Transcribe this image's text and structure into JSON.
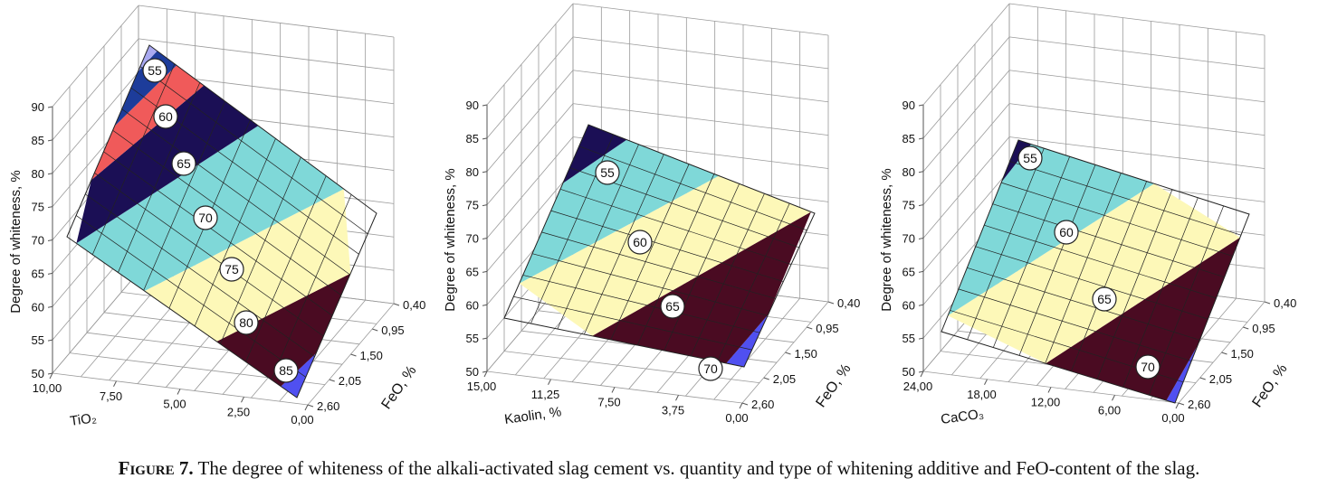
{
  "chart_data": [
    {
      "type": "surface3d",
      "zlabel": "Degree of whiteness, %",
      "xlabel": "TiO₂",
      "ylabel": "FeO, %",
      "z_ticks": [
        "50",
        "55",
        "60",
        "65",
        "70",
        "75",
        "80",
        "85",
        "90"
      ],
      "x_ticks": [
        "10,00",
        "7,50",
        "5,00",
        "2,50",
        "0,00"
      ],
      "y_ticks": [
        "0,40",
        "0,95",
        "1,50",
        "2,05",
        "2,60"
      ],
      "zlim": [
        50,
        90
      ],
      "contour_labels": [
        "85",
        "80",
        "75",
        "70",
        "65",
        "60",
        "55"
      ],
      "band_colors": [
        "#5050f0",
        "#4a0b22",
        "#fdf8b8",
        "#7fd8d8",
        "#1b0f55",
        "#f05a5a",
        "#1d3c9a",
        "#a9a9f0"
      ]
    },
    {
      "type": "surface3d",
      "zlabel": "Degree of whiteness, %",
      "xlabel": "Kaolin, %",
      "ylabel": "FeO, %",
      "z_ticks": [
        "50",
        "55",
        "60",
        "65",
        "70",
        "75",
        "80",
        "85",
        "90"
      ],
      "x_ticks": [
        "15,00",
        "11,25",
        "7,50",
        "3,75",
        "0,00"
      ],
      "y_ticks": [
        "0,40",
        "0,95",
        "1,50",
        "2,05",
        "2,60"
      ],
      "zlim": [
        50,
        90
      ],
      "contour_labels": [
        "70",
        "65",
        "60",
        "55"
      ],
      "band_colors": [
        "#5050f0",
        "#4a0b22",
        "#fdf8b8",
        "#7fd8d8",
        "#1b0f55"
      ]
    },
    {
      "type": "surface3d",
      "zlabel": "Degree of whiteness, %",
      "xlabel": "CaCO₃",
      "ylabel": "FeO, %",
      "z_ticks": [
        "50",
        "55",
        "60",
        "65",
        "70",
        "75",
        "80",
        "85",
        "90"
      ],
      "x_ticks": [
        "24,00",
        "18,00",
        "12,00",
        "6,00",
        "0,00"
      ],
      "y_ticks": [
        "0,40",
        "0,95",
        "1,50",
        "2,05",
        "2,60"
      ],
      "zlim": [
        50,
        90
      ],
      "contour_labels": [
        "70",
        "65",
        "60",
        "55"
      ],
      "band_colors": [
        "#5050f0",
        "#4a0b22",
        "#fdf8b8",
        "#7fd8d8",
        "#1b0f55"
      ]
    }
  ],
  "caption": {
    "lead": "Figure 7.",
    "text": " The degree of whiteness of the alkali-activated slag cement vs. quantity and type of whitening additive and FeO-content of the slag."
  }
}
